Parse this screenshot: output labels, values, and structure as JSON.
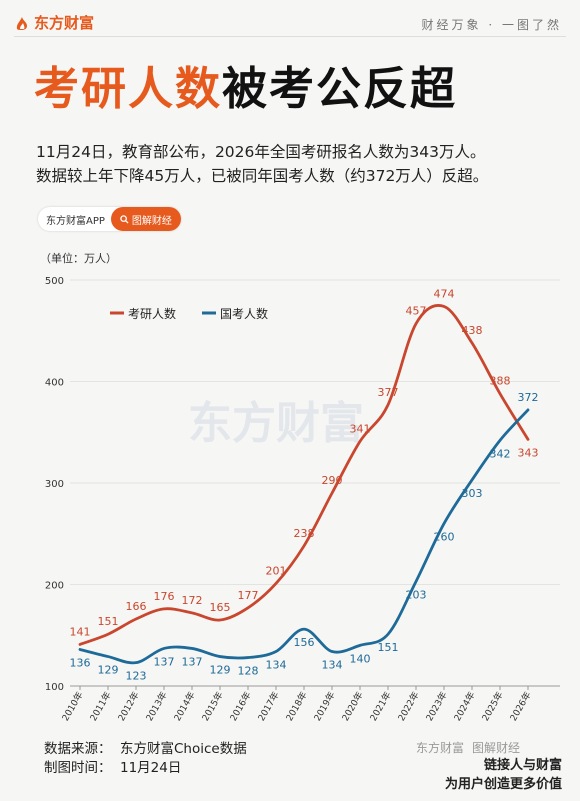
{
  "brand": {
    "name": "东方财富",
    "slogan": "财经万象 · 一图了然"
  },
  "headline": {
    "part1": "考研人数",
    "part2": "被考公反超"
  },
  "description": "11月24日，教育部公布，2026年全国考研报名人数为343万人。\n数据较上年下降45万人，已被同年国考人数（约372万人）反超。",
  "app_badge": {
    "name": "东方财富APP",
    "button": "图解财经",
    "icon": "search-icon"
  },
  "chart_data": {
    "type": "line",
    "unit_label": "（单位：万人）",
    "categories": [
      "2010年",
      "2011年",
      "2012年",
      "2013年",
      "2014年",
      "2015年",
      "2016年",
      "2017年",
      "2018年",
      "2019年",
      "2020年",
      "2021年",
      "2022年",
      "2023年",
      "2024年",
      "2025年",
      "2026年"
    ],
    "series": [
      {
        "name": "考研人数",
        "color": "#c8472e",
        "values": [
          141,
          151,
          166,
          176,
          172,
          165,
          177,
          201,
          238,
          290,
          341,
          377,
          457,
          474,
          438,
          388,
          343
        ]
      },
      {
        "name": "国考人数",
        "color": "#1e6a99",
        "values": [
          136,
          129,
          123,
          137,
          137,
          129,
          128,
          134,
          156,
          134,
          140,
          151,
          203,
          260,
          303,
          342,
          372
        ]
      }
    ],
    "ylim": [
      100,
      500
    ],
    "yticks": [
      100,
      200,
      300,
      400,
      500
    ],
    "legend_position": "top-left",
    "watermark": "东方财富"
  },
  "footer": {
    "source_label": "数据来源：",
    "source_value": "东方财富Choice数据",
    "date_label": "制图时间：",
    "date_value": "11月24日",
    "brand_text": "东方财富",
    "brand_tag": "图解财经",
    "slogan1": "链接人与财富",
    "slogan2": "为用户创造更多价值"
  }
}
